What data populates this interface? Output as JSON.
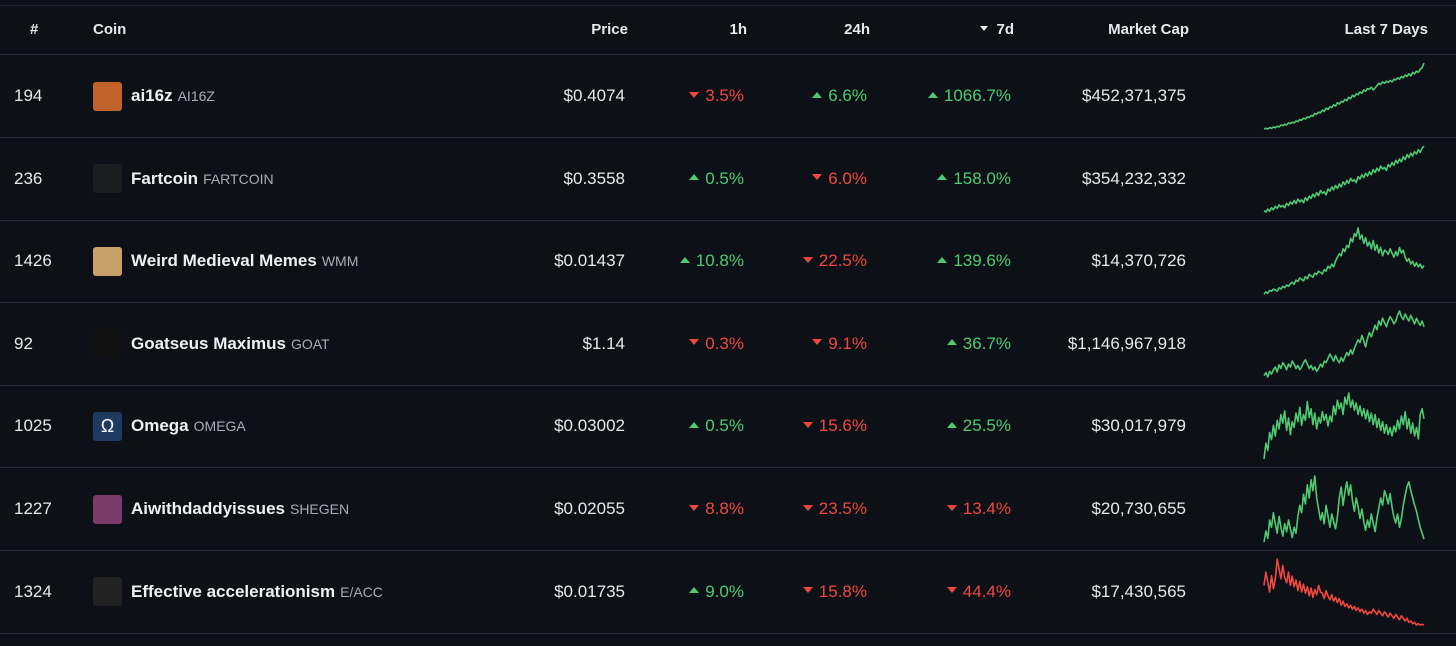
{
  "header": {
    "rank": "#",
    "coin": "Coin",
    "price": "Price",
    "h1": "1h",
    "h24": "24h",
    "d7": "7d",
    "market_cap": "Market Cap",
    "last7": "Last 7 Days"
  },
  "colors": {
    "up": "#4ecb71",
    "down": "#f0483e",
    "background": "#0d1117"
  },
  "rows": [
    {
      "rank": "194",
      "name": "ai16z",
      "symbol": "AI16Z",
      "logo_icon": "ai16z-logo-icon",
      "logo_color": "#c0622a",
      "price": "$0.4074",
      "h1": "3.5%",
      "h1_dir": "down",
      "h24": "6.6%",
      "h24_dir": "up",
      "d7": "1066.7%",
      "d7_dir": "up",
      "market_cap": "$452,371,375",
      "spark": [
        2,
        3,
        2,
        4,
        3,
        5,
        4,
        6,
        5,
        8,
        7,
        9,
        8,
        11,
        10,
        12,
        11,
        14,
        13,
        16,
        15,
        18,
        17,
        20,
        19,
        22,
        21,
        25,
        24,
        27,
        26,
        30,
        28,
        33,
        31,
        35,
        34,
        38,
        36,
        41,
        39,
        43,
        42,
        46,
        44,
        49,
        47,
        52,
        50,
        54,
        53,
        57,
        55,
        60,
        58,
        62,
        61,
        64,
        60,
        63,
        66,
        70,
        68,
        72,
        70,
        73,
        71,
        74,
        72,
        76,
        75,
        78,
        76,
        80,
        78,
        82,
        80,
        84,
        81,
        86,
        84,
        88,
        86,
        91,
        93,
        100
      ],
      "spark_color": "up"
    },
    {
      "rank": "236",
      "name": "Fartcoin",
      "symbol": "FARTCOIN",
      "logo_icon": "fartcoin-logo-icon",
      "logo_color": "#1b1d1f",
      "price": "$0.3558",
      "h1": "0.5%",
      "h1_dir": "up",
      "h24": "6.0%",
      "h24_dir": "down",
      "d7": "158.0%",
      "d7_dir": "up",
      "market_cap": "$354,232,332",
      "spark": [
        10,
        8,
        12,
        9,
        14,
        11,
        16,
        13,
        18,
        15,
        17,
        14,
        20,
        17,
        22,
        19,
        24,
        20,
        26,
        22,
        25,
        21,
        28,
        24,
        30,
        27,
        33,
        29,
        35,
        31,
        38,
        34,
        36,
        32,
        40,
        37,
        43,
        39,
        45,
        41,
        47,
        43,
        50,
        46,
        52,
        48,
        55,
        51,
        53,
        49,
        57,
        54,
        60,
        56,
        62,
        58,
        64,
        60,
        67,
        63,
        69,
        65,
        72,
        68,
        70,
        66,
        74,
        71,
        77,
        73,
        80,
        76,
        82,
        78,
        85,
        81,
        88,
        84,
        90,
        86,
        92,
        89,
        95,
        91,
        97,
        100
      ],
      "spark_color": "up"
    },
    {
      "rank": "1426",
      "name": "Weird Medieval Memes",
      "symbol": "WMM",
      "logo_icon": "wmm-logo-icon",
      "logo_color": "#c8a06a",
      "price": "$0.01437",
      "h1": "10.8%",
      "h1_dir": "up",
      "h24": "22.5%",
      "h24_dir": "down",
      "d7": "139.6%",
      "d7_dir": "up",
      "market_cap": "$14,370,726",
      "spark": [
        5,
        8,
        6,
        10,
        9,
        12,
        11,
        9,
        14,
        12,
        16,
        14,
        18,
        16,
        20,
        22,
        19,
        25,
        23,
        28,
        26,
        24,
        30,
        27,
        33,
        31,
        29,
        35,
        33,
        38,
        36,
        34,
        40,
        38,
        45,
        42,
        48,
        44,
        52,
        58,
        63,
        60,
        70,
        66,
        75,
        72,
        85,
        80,
        92,
        88,
        100,
        84,
        90,
        78,
        86,
        74,
        80,
        70,
        82,
        68,
        76,
        64,
        72,
        60,
        68,
        66,
        62,
        70,
        64,
        58,
        66,
        60,
        72,
        64,
        68,
        58,
        52,
        56,
        48,
        52,
        45,
        50,
        44,
        48,
        42,
        46
      ],
      "spark_color": "up"
    },
    {
      "rank": "92",
      "name": "Goatseus Maximus",
      "symbol": "GOAT",
      "logo_icon": "goat-logo-icon",
      "logo_color": "#111",
      "price": "$1.14",
      "h1": "0.3%",
      "h1_dir": "down",
      "h24": "9.1%",
      "h24_dir": "down",
      "d7": "36.7%",
      "d7_dir": "up",
      "market_cap": "$1,146,967,918",
      "spark": [
        10,
        14,
        8,
        16,
        12,
        18,
        22,
        15,
        25,
        20,
        28,
        24,
        18,
        26,
        22,
        30,
        26,
        20,
        24,
        18,
        22,
        28,
        32,
        26,
        20,
        24,
        18,
        22,
        16,
        20,
        26,
        22,
        30,
        28,
        34,
        40,
        35,
        30,
        38,
        32,
        28,
        35,
        30,
        36,
        42,
        38,
        46,
        40,
        48,
        54,
        60,
        56,
        66,
        58,
        50,
        62,
        70,
        64,
        72,
        80,
        74,
        86,
        80,
        90,
        84,
        78,
        86,
        92,
        88,
        82,
        86,
        94,
        100,
        92,
        88,
        96,
        90,
        86,
        94,
        88,
        82,
        90,
        84,
        80,
        86,
        78
      ],
      "spark_color": "up"
    },
    {
      "rank": "1025",
      "name": "Omega",
      "symbol": "OMEGA",
      "logo_icon": "omega-logo-icon",
      "logo_color": "#1f3a5f",
      "price": "$0.03002",
      "h1": "0.5%",
      "h1_dir": "up",
      "h24": "15.6%",
      "h24_dir": "down",
      "d7": "25.5%",
      "d7_dir": "up",
      "market_cap": "$30,017,979",
      "spark": [
        8,
        30,
        20,
        45,
        35,
        55,
        40,
        62,
        50,
        70,
        58,
        75,
        48,
        65,
        42,
        60,
        52,
        72,
        60,
        80,
        55,
        70,
        62,
        88,
        66,
        78,
        56,
        72,
        50,
        66,
        58,
        74,
        62,
        70,
        54,
        68,
        60,
        82,
        70,
        90,
        78,
        86,
        70,
        94,
        84,
        100,
        80,
        90,
        76,
        86,
        70,
        82,
        68,
        78,
        64,
        76,
        60,
        72,
        56,
        70,
        52,
        64,
        48,
        60,
        44,
        56,
        42,
        52,
        40,
        54,
        46,
        62,
        50,
        68,
        56,
        74,
        50,
        64,
        44,
        58,
        40,
        52,
        36,
        70,
        78,
        64
      ],
      "spark_color": "up"
    },
    {
      "rank": "1227",
      "name": "Aiwithdaddyissues",
      "symbol": "SHEGEN",
      "logo_icon": "shegen-logo-icon",
      "logo_color": "#7a3a6a",
      "price": "$0.02055",
      "h1": "8.8%",
      "h1_dir": "down",
      "h24": "23.5%",
      "h24_dir": "down",
      "d7": "13.4%",
      "d7_dir": "down",
      "market_cap": "$20,730,655",
      "spark": [
        10,
        25,
        15,
        40,
        30,
        50,
        35,
        22,
        45,
        30,
        18,
        35,
        24,
        40,
        28,
        16,
        30,
        22,
        45,
        60,
        50,
        75,
        62,
        88,
        70,
        95,
        80,
        100,
        70,
        55,
        40,
        50,
        35,
        60,
        45,
        30,
        48,
        38,
        28,
        44,
        70,
        85,
        60,
        78,
        92,
        74,
        88,
        66,
        52,
        70,
        58,
        42,
        55,
        38,
        26,
        40,
        30,
        48,
        36,
        24,
        42,
        56,
        70,
        60,
        80,
        72,
        62,
        76,
        58,
        44,
        36,
        48,
        30,
        42,
        60,
        74,
        86,
        92,
        80,
        70,
        60,
        52,
        40,
        30,
        22,
        14
      ],
      "spark_color": "up"
    },
    {
      "rank": "1324",
      "name": "Effective accelerationism",
      "symbol": "E/ACC",
      "logo_icon": "eacc-logo-icon",
      "logo_color": "#222",
      "price": "$0.01735",
      "h1": "9.0%",
      "h1_dir": "up",
      "h24": "15.8%",
      "h24_dir": "down",
      "d7": "44.4%",
      "d7_dir": "down",
      "market_cap": "$17,430,565",
      "spark": [
        60,
        80,
        65,
        50,
        75,
        55,
        70,
        100,
        85,
        70,
        90,
        72,
        64,
        80,
        60,
        74,
        58,
        68,
        52,
        66,
        50,
        62,
        48,
        58,
        44,
        56,
        42,
        54,
        46,
        60,
        50,
        48,
        40,
        52,
        44,
        38,
        46,
        36,
        42,
        34,
        40,
        30,
        36,
        28,
        32,
        26,
        30,
        24,
        28,
        22,
        26,
        20,
        24,
        18,
        22,
        16,
        20,
        18,
        24,
        20,
        16,
        22,
        18,
        14,
        20,
        16,
        12,
        18,
        14,
        10,
        16,
        12,
        8,
        14,
        10,
        6,
        10,
        4,
        6,
        2,
        4,
        0,
        2,
        0,
        1,
        0
      ],
      "spark_color": "down"
    }
  ]
}
